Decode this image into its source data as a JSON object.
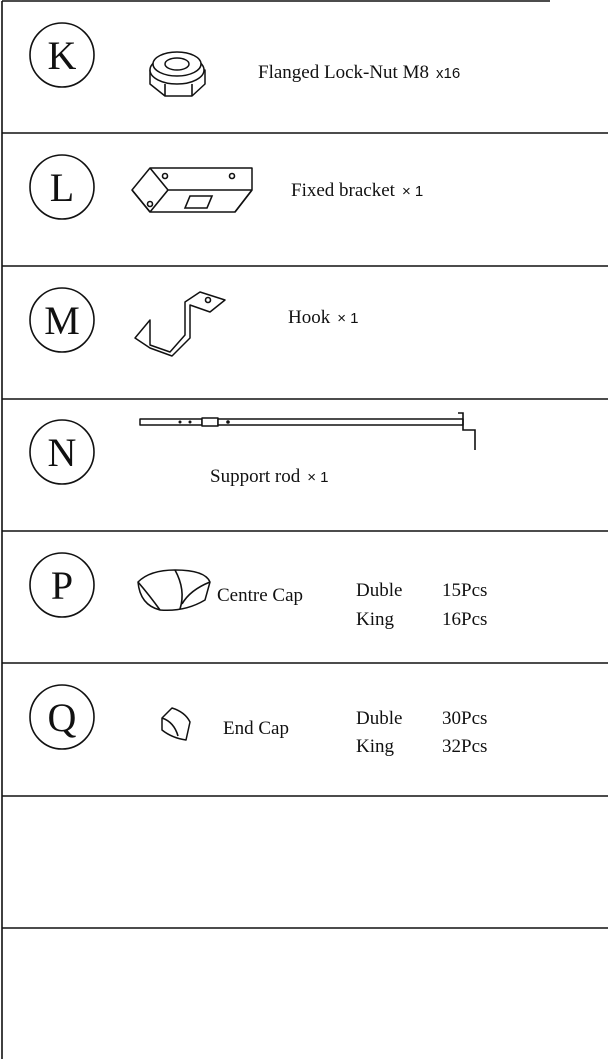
{
  "parts": [
    {
      "letter": "K",
      "name": "Flanged Lock-Nut M8",
      "qty": "x16"
    },
    {
      "letter": "L",
      "name": "Fixed  bracket",
      "qty": "× 1"
    },
    {
      "letter": "M",
      "name": "Hook",
      "qty": "× 1"
    },
    {
      "letter": "N",
      "name": "Support  rod",
      "qty": "× 1"
    },
    {
      "letter": "P",
      "name": "Centre Cap",
      "variants": [
        {
          "model": "Duble",
          "qty": "15Pcs"
        },
        {
          "model": "King",
          "qty": "16Pcs"
        }
      ]
    },
    {
      "letter": "Q",
      "name": "End Cap",
      "variants": [
        {
          "model": "Duble",
          "qty": "30Pcs"
        },
        {
          "model": "King",
          "qty": "32Pcs"
        }
      ]
    }
  ]
}
